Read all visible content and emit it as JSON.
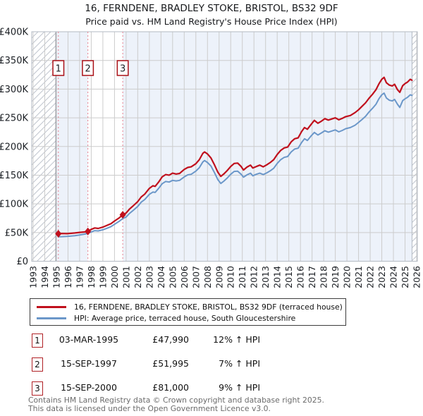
{
  "title": "16, FERNDENE, BRADLEY STOKE, BRISTOL, BS32 9DF",
  "subtitle": "Price paid vs. HM Land Registry's House Price Index (HPI)",
  "legend": [
    {
      "label": "16, FERNDENE, BRADLEY STOKE, BRISTOL, BS32 9DF (terraced house)",
      "color": "#c0101d"
    },
    {
      "label": "HPI: Average price, terraced house, South Gloucestershire",
      "color": "#6b97c9"
    }
  ],
  "transactions": [
    {
      "num": "1",
      "date": "03-MAR-1995",
      "price": "£47,990",
      "hpi_delta": "12% ↑ HPI",
      "x_year": 1995.17,
      "value_k": 47.99
    },
    {
      "num": "2",
      "date": "15-SEP-1997",
      "price": "£51,995",
      "hpi_delta": "7% ↑ HPI",
      "x_year": 1997.71,
      "value_k": 51.995
    },
    {
      "num": "3",
      "date": "15-SEP-2000",
      "price": "£81,000",
      "hpi_delta": "9% ↑ HPI",
      "x_year": 2000.71,
      "value_k": 81.0
    }
  ],
  "footer": {
    "line1": "Contains HM Land Registry data © Crown copyright and database right 2025.",
    "line2": "This data is licensed under the Open Government Licence v3.0."
  },
  "chart_data": {
    "type": "line",
    "title": "16, FERNDENE, BRADLEY STOKE, BRISTOL, BS32 9DF — Price paid vs. HPI",
    "ylim_k": [
      0,
      400
    ],
    "y_ticks": [
      "£0",
      "£50K",
      "£100K",
      "£150K",
      "£200K",
      "£250K",
      "£300K",
      "£350K",
      "£400K"
    ],
    "x_ticks": [
      "1993",
      "1994",
      "1995",
      "1996",
      "1997",
      "1998",
      "1999",
      "2000",
      "2001",
      "2002",
      "2003",
      "2004",
      "2005",
      "2006",
      "2007",
      "2008",
      "2009",
      "2010",
      "2011",
      "2012",
      "2013",
      "2014",
      "2015",
      "2016",
      "2017",
      "2018",
      "2019",
      "2020",
      "2021",
      "2022",
      "2023",
      "2024",
      "2025",
      "2026"
    ],
    "x_domain_years": [
      1992.88,
      2026.15
    ],
    "hpi_data_start_year": 1994.95,
    "hpi_data_end_year": 2025.6,
    "grid": true,
    "legend_position": "bottom",
    "colors": {
      "band": "#edf2fa",
      "grid": "#cccccc",
      "hatch": "#c0c5ce",
      "sale_dash": "#e8808f",
      "box_border": "#aa1016",
      "plot_border": "#b3bac3",
      "data_start_line": "#8a8f98"
    },
    "series": [
      {
        "name": "16, FERNDENE, BRADLEY STOKE, BRISTOL, BS32 9DF (terraced house)",
        "color": "#c0101d",
        "width": 2.2,
        "points_year_valueK": [
          [
            1995.17,
            48
          ],
          [
            1995.5,
            48.3
          ],
          [
            1995.9,
            48
          ],
          [
            1996.2,
            48.6
          ],
          [
            1996.6,
            49.3
          ],
          [
            1997,
            50.2
          ],
          [
            1997.4,
            51
          ],
          [
            1997.71,
            52
          ],
          [
            1998,
            55.5
          ],
          [
            1998.3,
            58
          ],
          [
            1998.6,
            57.2
          ],
          [
            1999,
            59.5
          ],
          [
            1999.3,
            62
          ],
          [
            1999.7,
            65.5
          ],
          [
            2000,
            70
          ],
          [
            2000.4,
            75.5
          ],
          [
            2000.71,
            81
          ],
          [
            2001,
            84
          ],
          [
            2001.3,
            91
          ],
          [
            2001.6,
            96.5
          ],
          [
            2002,
            104
          ],
          [
            2002.3,
            112
          ],
          [
            2002.6,
            117
          ],
          [
            2003,
            127
          ],
          [
            2003.3,
            131.5
          ],
          [
            2003.5,
            130.5
          ],
          [
            2003.8,
            138
          ],
          [
            2004.1,
            147
          ],
          [
            2004.4,
            151
          ],
          [
            2004.7,
            150
          ],
          [
            2005,
            153.5
          ],
          [
            2005.3,
            152
          ],
          [
            2005.6,
            153
          ],
          [
            2006,
            160
          ],
          [
            2006.3,
            163.5
          ],
          [
            2006.6,
            164.5
          ],
          [
            2007,
            170
          ],
          [
            2007.3,
            177
          ],
          [
            2007.6,
            188
          ],
          [
            2007.75,
            190.5
          ],
          [
            2008,
            187
          ],
          [
            2008.3,
            180
          ],
          [
            2008.6,
            168
          ],
          [
            2008.9,
            155
          ],
          [
            2009.15,
            148
          ],
          [
            2009.4,
            152
          ],
          [
            2009.7,
            158
          ],
          [
            2010,
            165
          ],
          [
            2010.3,
            170.5
          ],
          [
            2010.6,
            171
          ],
          [
            2010.9,
            165
          ],
          [
            2011.1,
            159
          ],
          [
            2011.4,
            164
          ],
          [
            2011.7,
            167.5
          ],
          [
            2011.9,
            162.5
          ],
          [
            2012.2,
            165
          ],
          [
            2012.5,
            167.5
          ],
          [
            2012.8,
            164.5
          ],
          [
            2013.1,
            168
          ],
          [
            2013.4,
            172
          ],
          [
            2013.7,
            177
          ],
          [
            2014,
            186
          ],
          [
            2014.3,
            193
          ],
          [
            2014.6,
            197.5
          ],
          [
            2014.9,
            199
          ],
          [
            2015.2,
            208
          ],
          [
            2015.5,
            213.5
          ],
          [
            2015.8,
            215
          ],
          [
            2016.1,
            226
          ],
          [
            2016.35,
            233
          ],
          [
            2016.6,
            230
          ],
          [
            2016.9,
            238
          ],
          [
            2017.2,
            245.5
          ],
          [
            2017.5,
            240.5
          ],
          [
            2017.8,
            244
          ],
          [
            2018.1,
            248.5
          ],
          [
            2018.4,
            246
          ],
          [
            2018.7,
            248
          ],
          [
            2019,
            250
          ],
          [
            2019.3,
            246.5
          ],
          [
            2019.6,
            249
          ],
          [
            2019.9,
            252
          ],
          [
            2020.3,
            254
          ],
          [
            2020.7,
            259
          ],
          [
            2021,
            264
          ],
          [
            2021.3,
            270
          ],
          [
            2021.6,
            276
          ],
          [
            2021.9,
            284
          ],
          [
            2022.2,
            291
          ],
          [
            2022.5,
            299
          ],
          [
            2022.75,
            309
          ],
          [
            2023,
            317
          ],
          [
            2023.2,
            320.5
          ],
          [
            2023.4,
            311
          ],
          [
            2023.65,
            307
          ],
          [
            2023.9,
            305.5
          ],
          [
            2024.1,
            308.5
          ],
          [
            2024.35,
            299
          ],
          [
            2024.55,
            294.5
          ],
          [
            2024.8,
            306
          ],
          [
            2025,
            309.5
          ],
          [
            2025.2,
            312
          ],
          [
            2025.45,
            317
          ],
          [
            2025.6,
            315.5
          ]
        ]
      },
      {
        "name": "HPI: Average price, terraced house, South Gloucestershire",
        "color": "#6b97c9",
        "width": 2.0,
        "points_year_valueK": [
          [
            1995.17,
            42.8
          ],
          [
            1995.5,
            42.9
          ],
          [
            1995.9,
            43.2
          ],
          [
            1996.2,
            43.8
          ],
          [
            1996.6,
            44.6
          ],
          [
            1997,
            45.8
          ],
          [
            1997.4,
            47.2
          ],
          [
            1997.71,
            48.6
          ],
          [
            1998,
            51
          ],
          [
            1998.3,
            53.3
          ],
          [
            1998.6,
            52.8
          ],
          [
            1999,
            54.8
          ],
          [
            1999.3,
            57
          ],
          [
            1999.7,
            60.3
          ],
          [
            2000,
            64.3
          ],
          [
            2000.4,
            69.5
          ],
          [
            2000.71,
            74.3
          ],
          [
            2001,
            77
          ],
          [
            2001.3,
            83.5
          ],
          [
            2001.6,
            88.5
          ],
          [
            2002,
            95.5
          ],
          [
            2002.3,
            103
          ],
          [
            2002.6,
            107.5
          ],
          [
            2003,
            116.5
          ],
          [
            2003.3,
            120.5
          ],
          [
            2003.5,
            120
          ],
          [
            2003.8,
            127
          ],
          [
            2004.1,
            135
          ],
          [
            2004.4,
            139
          ],
          [
            2004.7,
            138
          ],
          [
            2005,
            141
          ],
          [
            2005.3,
            140
          ],
          [
            2005.6,
            141
          ],
          [
            2006,
            147
          ],
          [
            2006.3,
            150.5
          ],
          [
            2006.6,
            151.5
          ],
          [
            2007,
            157
          ],
          [
            2007.3,
            163
          ],
          [
            2007.6,
            173
          ],
          [
            2007.75,
            175.5
          ],
          [
            2008,
            172
          ],
          [
            2008.3,
            166
          ],
          [
            2008.6,
            154.5
          ],
          [
            2008.9,
            142
          ],
          [
            2009.15,
            135.5
          ],
          [
            2009.4,
            139.5
          ],
          [
            2009.7,
            145
          ],
          [
            2010,
            151.5
          ],
          [
            2010.3,
            156.5
          ],
          [
            2010.6,
            157
          ],
          [
            2010.9,
            151.5
          ],
          [
            2011.1,
            146.5
          ],
          [
            2011.4,
            150.5
          ],
          [
            2011.7,
            153.5
          ],
          [
            2011.9,
            149
          ],
          [
            2012.2,
            151.5
          ],
          [
            2012.5,
            153.5
          ],
          [
            2012.8,
            151
          ],
          [
            2013.1,
            154
          ],
          [
            2013.4,
            157.5
          ],
          [
            2013.7,
            162
          ],
          [
            2014,
            170.5
          ],
          [
            2014.3,
            177
          ],
          [
            2014.6,
            181
          ],
          [
            2014.9,
            182.5
          ],
          [
            2015.2,
            190.5
          ],
          [
            2015.5,
            195.5
          ],
          [
            2015.8,
            197
          ],
          [
            2016.1,
            207
          ],
          [
            2016.35,
            213.5
          ],
          [
            2016.6,
            210.5
          ],
          [
            2016.9,
            218
          ],
          [
            2017.2,
            224.5
          ],
          [
            2017.5,
            220
          ],
          [
            2017.8,
            223.5
          ],
          [
            2018.1,
            227.5
          ],
          [
            2018.4,
            225
          ],
          [
            2018.7,
            227
          ],
          [
            2019,
            229
          ],
          [
            2019.3,
            225.5
          ],
          [
            2019.6,
            228
          ],
          [
            2019.9,
            231
          ],
          [
            2020.3,
            233
          ],
          [
            2020.7,
            237
          ],
          [
            2021,
            242
          ],
          [
            2021.3,
            247
          ],
          [
            2021.6,
            252.5
          ],
          [
            2021.9,
            260
          ],
          [
            2022.2,
            266.5
          ],
          [
            2022.5,
            273.5
          ],
          [
            2022.75,
            283
          ],
          [
            2023,
            290
          ],
          [
            2023.2,
            293
          ],
          [
            2023.4,
            284.5
          ],
          [
            2023.65,
            280.5
          ],
          [
            2023.9,
            279.5
          ],
          [
            2024.1,
            282
          ],
          [
            2024.35,
            273.5
          ],
          [
            2024.55,
            268
          ],
          [
            2024.8,
            280
          ],
          [
            2025,
            283
          ],
          [
            2025.2,
            285.5
          ],
          [
            2025.45,
            290
          ],
          [
            2025.6,
            289
          ]
        ]
      }
    ]
  }
}
